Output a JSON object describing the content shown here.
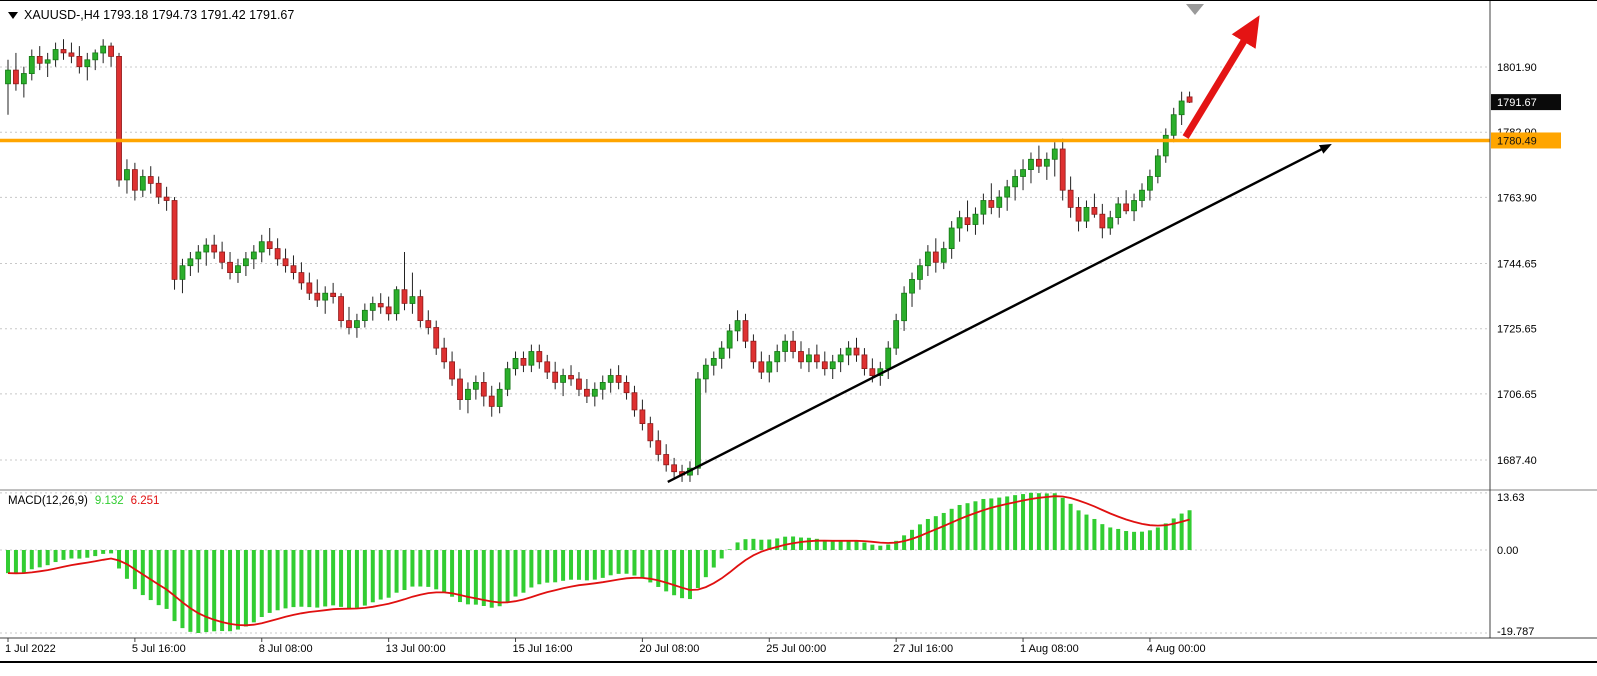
{
  "header": {
    "title": "XAUUSD-,H4  1793.18 1794.73 1791.42 1791.67"
  },
  "colors": {
    "bull": "#2BAE2B",
    "bull_border": "#157815",
    "bear": "#DE3131",
    "bear_border": "#8F1A1A",
    "wick": "#222222",
    "grid": "#C8C8C8",
    "orange_line": "#FFA500",
    "macd_hist": "#32CD32",
    "macd_signal": "#E01010",
    "badge_black_bg": "#0A0A0A",
    "badge_black_text": "#FFFFFF",
    "badge_orange_bg": "#FFA500",
    "badge_orange_text": "#111111",
    "trend_arrow": "#000000",
    "red_arrow": "#E41414",
    "axis_text": "#000000"
  },
  "price_axis": {
    "gridlines": [
      {
        "label": "1801.90",
        "value": 1801.9
      },
      {
        "label": "1782.90",
        "value": 1782.9
      },
      {
        "label": "1763.90",
        "value": 1763.9
      },
      {
        "label": "1744.65",
        "value": 1744.65
      },
      {
        "label": "1725.65",
        "value": 1725.65
      },
      {
        "label": "1706.65",
        "value": 1706.65
      },
      {
        "label": "1687.40",
        "value": 1687.4
      }
    ],
    "current_badge": {
      "label": "1791.67",
      "value": 1791.67
    },
    "orange_badge": {
      "label": "1780.49",
      "value": 1780.49
    }
  },
  "time_axis": {
    "labels": [
      {
        "text": "1 Jul 2022",
        "index": 0
      },
      {
        "text": "5 Jul 16:00",
        "index": 16
      },
      {
        "text": "8 Jul 08:00",
        "index": 32
      },
      {
        "text": "13 Jul 00:00",
        "index": 48
      },
      {
        "text": "15 Jul 16:00",
        "index": 64
      },
      {
        "text": "20 Jul 08:00",
        "index": 80
      },
      {
        "text": "25 Jul 00:00",
        "index": 96
      },
      {
        "text": "27 Jul 16:00",
        "index": 112
      },
      {
        "text": "1 Aug 08:00",
        "index": 128
      },
      {
        "text": "4 Aug 00:00",
        "index": 144
      }
    ]
  },
  "macd_panel": {
    "name": "MACD(12,26,9)",
    "macd_value": "9.132",
    "signal_value": "6.251",
    "axis_max": "13.63",
    "axis_zero": "0.00",
    "axis_min": "-19.787",
    "params": {
      "fast": 12,
      "slow": 26,
      "signal": 9
    }
  },
  "annotations": {
    "horizontal_line_price": 1780.49,
    "trend_arrow": {
      "from": {
        "index": 83.2,
        "price": 1681
      },
      "to": {
        "index": 165.7,
        "price": 1778
      }
    },
    "red_arrow": {
      "from": {
        "index": 148.5,
        "price": 1781.5
      },
      "to": {
        "index": 156.0,
        "price": 1810
      }
    }
  },
  "chart_data": {
    "type": "candlestick",
    "symbol": "XAUUSD-",
    "timeframe": "H4",
    "title": "XAUUSD-,H4",
    "ohlc_current": {
      "open": 1793.18,
      "high": 1794.73,
      "low": 1791.42,
      "close": 1791.67
    },
    "price_axis_ticks": [
      1801.9,
      1782.9,
      1763.9,
      1744.65,
      1725.65,
      1706.65,
      1687.4
    ],
    "indicator": {
      "type": "MACD",
      "fast": 12,
      "slow": 26,
      "signal": 9,
      "current_macd": 9.132,
      "current_signal": 6.251,
      "display_max": 13.63,
      "display_zero": 0.0,
      "display_min": -19.787
    },
    "candles": [
      [
        1797,
        1804,
        1788,
        1801
      ],
      [
        1801,
        1806,
        1795,
        1797
      ],
      [
        1797,
        1802,
        1793,
        1800
      ],
      [
        1800,
        1807,
        1798,
        1805
      ],
      [
        1805,
        1808,
        1801,
        1803
      ],
      [
        1803,
        1806,
        1799,
        1804
      ],
      [
        1804,
        1809,
        1802,
        1807
      ],
      [
        1807,
        1810,
        1804,
        1806
      ],
      [
        1806,
        1809,
        1803,
        1805
      ],
      [
        1805,
        1808,
        1800,
        1802
      ],
      [
        1802,
        1806,
        1798,
        1804
      ],
      [
        1804,
        1807,
        1801,
        1806
      ],
      [
        1806,
        1810,
        1803,
        1808
      ],
      [
        1808,
        1809,
        1802,
        1805
      ],
      [
        1805,
        1806,
        1767,
        1769
      ],
      [
        1769,
        1775,
        1765,
        1772
      ],
      [
        1772,
        1774,
        1763,
        1766
      ],
      [
        1766,
        1772,
        1764,
        1770
      ],
      [
        1770,
        1773,
        1765,
        1768
      ],
      [
        1768,
        1770,
        1762,
        1764
      ],
      [
        1764,
        1767,
        1760,
        1763
      ],
      [
        1763,
        1764,
        1737,
        1740
      ],
      [
        1740,
        1746,
        1736,
        1744
      ],
      [
        1744,
        1748,
        1741,
        1746
      ],
      [
        1746,
        1750,
        1742,
        1748
      ],
      [
        1748,
        1752,
        1744,
        1750
      ],
      [
        1750,
        1753,
        1746,
        1748
      ],
      [
        1748,
        1751,
        1743,
        1745
      ],
      [
        1745,
        1748,
        1740,
        1742
      ],
      [
        1742,
        1746,
        1739,
        1744
      ],
      [
        1744,
        1748,
        1741,
        1746
      ],
      [
        1746,
        1750,
        1743,
        1748
      ],
      [
        1748,
        1753,
        1745,
        1751
      ],
      [
        1751,
        1755,
        1747,
        1749
      ],
      [
        1749,
        1752,
        1744,
        1746
      ],
      [
        1746,
        1749,
        1742,
        1744
      ],
      [
        1744,
        1747,
        1740,
        1742
      ],
      [
        1742,
        1745,
        1737,
        1739
      ],
      [
        1739,
        1742,
        1734,
        1736
      ],
      [
        1736,
        1740,
        1732,
        1734
      ],
      [
        1734,
        1738,
        1730,
        1736
      ],
      [
        1736,
        1739,
        1733,
        1735
      ],
      [
        1735,
        1736,
        1726,
        1728
      ],
      [
        1728,
        1732,
        1724,
        1726
      ],
      [
        1726,
        1730,
        1723,
        1728
      ],
      [
        1728,
        1733,
        1726,
        1731
      ],
      [
        1731,
        1735,
        1728,
        1733
      ],
      [
        1733,
        1736,
        1730,
        1732
      ],
      [
        1732,
        1735,
        1728,
        1730
      ],
      [
        1730,
        1738,
        1728,
        1737
      ],
      [
        1737,
        1748,
        1731,
        1733
      ],
      [
        1733,
        1742,
        1730,
        1735
      ],
      [
        1735,
        1737,
        1726,
        1728
      ],
      [
        1728,
        1731,
        1724,
        1726
      ],
      [
        1726,
        1728,
        1718,
        1720
      ],
      [
        1720,
        1723,
        1714,
        1716
      ],
      [
        1716,
        1719,
        1709,
        1711
      ],
      [
        1711,
        1714,
        1702,
        1705
      ],
      [
        1705,
        1710,
        1701,
        1708
      ],
      [
        1708,
        1712,
        1705,
        1710
      ],
      [
        1710,
        1713,
        1703,
        1706
      ],
      [
        1706,
        1709,
        1700,
        1703
      ],
      [
        1703,
        1710,
        1701,
        1708
      ],
      [
        1708,
        1716,
        1706,
        1714
      ],
      [
        1714,
        1719,
        1712,
        1717
      ],
      [
        1717,
        1719,
        1713,
        1715
      ],
      [
        1715,
        1721,
        1713,
        1719
      ],
      [
        1719,
        1721,
        1714,
        1716
      ],
      [
        1716,
        1718,
        1711,
        1713
      ],
      [
        1713,
        1716,
        1708,
        1710
      ],
      [
        1710,
        1714,
        1706,
        1712
      ],
      [
        1712,
        1715,
        1709,
        1711
      ],
      [
        1711,
        1713,
        1706,
        1708
      ],
      [
        1708,
        1711,
        1704,
        1706
      ],
      [
        1706,
        1710,
        1703,
        1708
      ],
      [
        1708,
        1712,
        1705,
        1710
      ],
      [
        1710,
        1714,
        1707,
        1712
      ],
      [
        1712,
        1715,
        1708,
        1710
      ],
      [
        1710,
        1712,
        1705,
        1707
      ],
      [
        1707,
        1709,
        1700,
        1702
      ],
      [
        1702,
        1705,
        1696,
        1698
      ],
      [
        1698,
        1700,
        1691,
        1693
      ],
      [
        1693,
        1696,
        1687,
        1689
      ],
      [
        1689,
        1692,
        1684,
        1686
      ],
      [
        1686,
        1688,
        1682,
        1684
      ],
      [
        1684,
        1686,
        1681,
        1683
      ],
      [
        1683,
        1687,
        1681,
        1685
      ],
      [
        1685,
        1713,
        1683,
        1711
      ],
      [
        1711,
        1717,
        1707,
        1715
      ],
      [
        1715,
        1719,
        1712,
        1717
      ],
      [
        1717,
        1722,
        1714,
        1720
      ],
      [
        1720,
        1727,
        1717,
        1725
      ],
      [
        1725,
        1731,
        1722,
        1728
      ],
      [
        1728,
        1730,
        1720,
        1722
      ],
      [
        1722,
        1724,
        1714,
        1716
      ],
      [
        1716,
        1719,
        1711,
        1713
      ],
      [
        1713,
        1718,
        1710,
        1716
      ],
      [
        1716,
        1721,
        1713,
        1719
      ],
      [
        1719,
        1724,
        1716,
        1722
      ],
      [
        1722,
        1725,
        1717,
        1719
      ],
      [
        1719,
        1722,
        1714,
        1716
      ],
      [
        1716,
        1720,
        1713,
        1718
      ],
      [
        1718,
        1721,
        1714,
        1716
      ],
      [
        1716,
        1719,
        1712,
        1714
      ],
      [
        1714,
        1718,
        1711,
        1716
      ],
      [
        1716,
        1720,
        1713,
        1718
      ],
      [
        1718,
        1722,
        1715,
        1720
      ],
      [
        1720,
        1723,
        1716,
        1718
      ],
      [
        1718,
        1720,
        1712,
        1714
      ],
      [
        1714,
        1717,
        1710,
        1712
      ],
      [
        1712,
        1716,
        1709,
        1714
      ],
      [
        1714,
        1722,
        1711,
        1720
      ],
      [
        1720,
        1730,
        1718,
        1728
      ],
      [
        1728,
        1738,
        1725,
        1736
      ],
      [
        1736,
        1742,
        1732,
        1740
      ],
      [
        1740,
        1746,
        1737,
        1744
      ],
      [
        1744,
        1750,
        1741,
        1748
      ],
      [
        1748,
        1752,
        1742,
        1745
      ],
      [
        1745,
        1751,
        1743,
        1749
      ],
      [
        1749,
        1757,
        1746,
        1755
      ],
      [
        1755,
        1760,
        1751,
        1758
      ],
      [
        1758,
        1763,
        1754,
        1756
      ],
      [
        1756,
        1761,
        1753,
        1759
      ],
      [
        1759,
        1765,
        1756,
        1763
      ],
      [
        1763,
        1768,
        1759,
        1761
      ],
      [
        1761,
        1766,
        1758,
        1764
      ],
      [
        1764,
        1769,
        1760,
        1767
      ],
      [
        1767,
        1772,
        1763,
        1770
      ],
      [
        1770,
        1775,
        1766,
        1772
      ],
      [
        1772,
        1777,
        1768,
        1775
      ],
      [
        1775,
        1779,
        1771,
        1773
      ],
      [
        1773,
        1777,
        1769,
        1775
      ],
      [
        1775,
        1780,
        1770,
        1778
      ],
      [
        1778,
        1781,
        1763,
        1766
      ],
      [
        1766,
        1770,
        1758,
        1761
      ],
      [
        1761,
        1764,
        1754,
        1757
      ],
      [
        1757,
        1763,
        1755,
        1761
      ],
      [
        1761,
        1765,
        1758,
        1759
      ],
      [
        1759,
        1762,
        1752,
        1755
      ],
      [
        1755,
        1760,
        1753,
        1758
      ],
      [
        1758,
        1764,
        1756,
        1762
      ],
      [
        1762,
        1766,
        1759,
        1760
      ],
      [
        1760,
        1765,
        1757,
        1763
      ],
      [
        1763,
        1768,
        1761,
        1766
      ],
      [
        1766,
        1772,
        1763,
        1770
      ],
      [
        1770,
        1778,
        1768,
        1776
      ],
      [
        1776,
        1784,
        1774,
        1782
      ],
      [
        1782,
        1790,
        1780,
        1788
      ],
      [
        1788,
        1794.7,
        1785,
        1792
      ],
      [
        1793.2,
        1794.73,
        1791.42,
        1791.67
      ]
    ]
  }
}
